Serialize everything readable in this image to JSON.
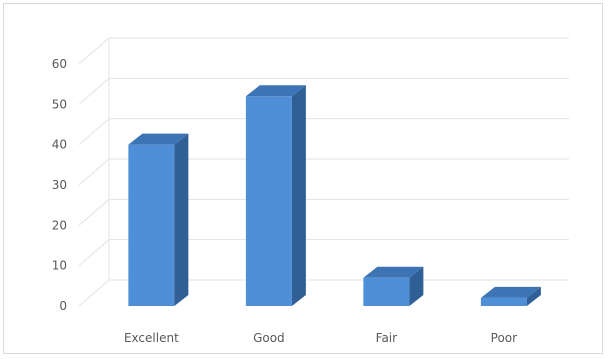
{
  "chart_data": {
    "type": "bar",
    "style": "3d-column",
    "categories": [
      "Excellent",
      "Good",
      "Fair",
      "Poor"
    ],
    "values": [
      40,
      52,
      7,
      2
    ],
    "ylim": [
      0,
      60
    ],
    "yticks": [
      0,
      10,
      20,
      30,
      40,
      50,
      60
    ],
    "grid": true,
    "legend": "none",
    "title": "",
    "xlabel": "",
    "ylabel": "",
    "colors": {
      "bar_front": "#4f8fd8",
      "bar_side": "#2f5f95",
      "bar_top": "#3c74b5",
      "grid": "#e3e3e3",
      "wall": "#e6e6e6",
      "text": "#595959"
    }
  }
}
